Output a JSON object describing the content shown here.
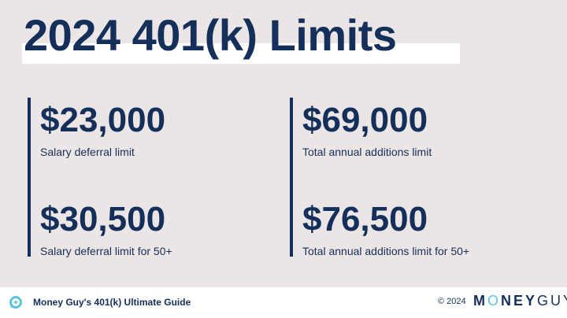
{
  "title": "2024 401(k) Limits",
  "stats": [
    {
      "value": "$23,000",
      "label": "Salary deferral limit"
    },
    {
      "value": "$30,500",
      "label": "Salary deferral limit for 50+"
    },
    {
      "value": "$69,000",
      "label": "Total annual additions limit"
    },
    {
      "value": "$76,500",
      "label": "Total annual additions limit for 50+"
    }
  ],
  "footer": {
    "guide": "Money Guy's 401(k) Ultimate Guide",
    "copyright": "© 2024",
    "brand_a": "M",
    "brand_o": "O",
    "brand_b": "NEY",
    "brand_c": "GUY",
    "icon": "chat-bubble-plus-icon"
  },
  "colors": {
    "navy": "#14305a",
    "accent": "#5cc4d8",
    "background": "#ece5e5"
  }
}
